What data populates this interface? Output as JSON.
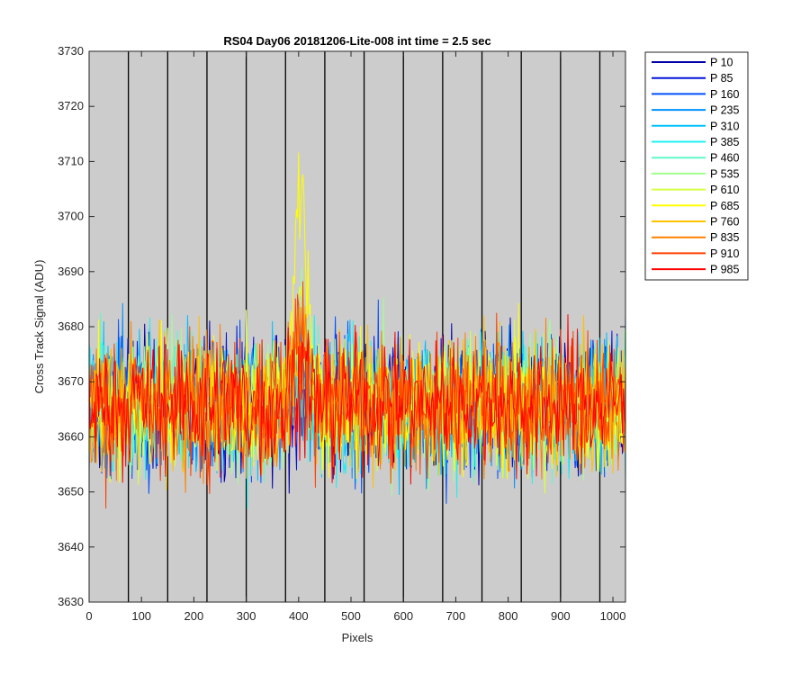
{
  "chart_data": {
    "type": "line",
    "title": "RS04 Day06 20181206-Lite-008 int time = 2.5 sec",
    "xlabel": "Pixels",
    "ylabel": "Cross Track Signal (ADU)",
    "xlim": [
      0,
      1024
    ],
    "ylim": [
      3630,
      3730
    ],
    "xticks": [
      0,
      100,
      200,
      300,
      400,
      500,
      600,
      700,
      800,
      900,
      1000
    ],
    "yticks": [
      3630,
      3640,
      3650,
      3660,
      3670,
      3680,
      3690,
      3700,
      3710,
      3720,
      3730
    ],
    "xtick_labels": [
      "0",
      "100",
      "200",
      "300",
      "400",
      "500",
      "600",
      "700",
      "800",
      "900",
      "1000"
    ],
    "ytick_labels": [
      "3630",
      "3640",
      "3650",
      "3660",
      "3670",
      "3680",
      "3690",
      "3700",
      "3710",
      "3720",
      "3730"
    ],
    "vertical_lines_x": [
      75,
      150,
      225,
      300,
      375,
      450,
      525,
      600,
      675,
      750,
      825,
      900,
      975
    ],
    "background_color": "#cccccc",
    "grid": false,
    "legend_position": "outside-right",
    "noise_model": {
      "baseline": 3666,
      "noise_std": 7.5,
      "peak_center": 405,
      "peak_halfwidth": 28,
      "peak_height": 40,
      "peak_series_index": 9
    },
    "series": [
      {
        "name": "P 10",
        "color": "#0000a8"
      },
      {
        "name": "P 85",
        "color": "#0014d8"
      },
      {
        "name": "P 160",
        "color": "#0050ff"
      },
      {
        "name": "P 235",
        "color": "#0090ff"
      },
      {
        "name": "P 310",
        "color": "#00c0ff"
      },
      {
        "name": "P 385",
        "color": "#20f0f0"
      },
      {
        "name": "P 460",
        "color": "#60f8c8"
      },
      {
        "name": "P 535",
        "color": "#a0ff90"
      },
      {
        "name": "P 610",
        "color": "#d8ff40"
      },
      {
        "name": "P 685",
        "color": "#ffff00"
      },
      {
        "name": "P 760",
        "color": "#ffc000"
      },
      {
        "name": "P 835",
        "color": "#ff8000"
      },
      {
        "name": "P 910",
        "color": "#ff4000"
      },
      {
        "name": "P 985",
        "color": "#ff0000"
      }
    ]
  }
}
